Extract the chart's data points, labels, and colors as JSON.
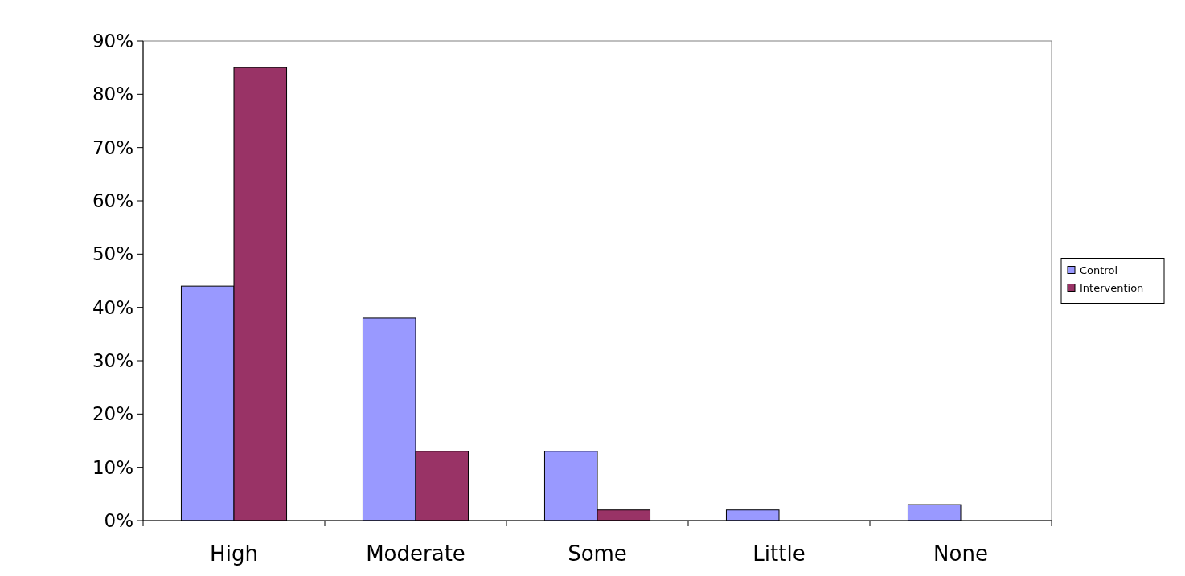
{
  "chart_data": {
    "type": "bar",
    "categories": [
      "High",
      "Moderate",
      "Some",
      "Little",
      "None"
    ],
    "series": [
      {
        "name": "Control",
        "color": "#9999ff",
        "values": [
          44,
          38,
          13,
          2,
          3
        ]
      },
      {
        "name": "Intervention",
        "color": "#993366",
        "values": [
          85,
          13,
          2,
          0,
          0
        ]
      }
    ],
    "ylim": [
      0,
      90
    ],
    "yticks": [
      {
        "value": 0,
        "label": "0%"
      },
      {
        "value": 10,
        "label": "10%"
      },
      {
        "value": 20,
        "label": "20%"
      },
      {
        "value": 30,
        "label": "30%"
      },
      {
        "value": 40,
        "label": "40%"
      },
      {
        "value": 50,
        "label": "50%"
      },
      {
        "value": 60,
        "label": "60%"
      },
      {
        "value": 70,
        "label": "70%"
      },
      {
        "value": 80,
        "label": "80%"
      },
      {
        "value": 90,
        "label": "90%"
      }
    ],
    "grid": false,
    "legend": "right"
  }
}
